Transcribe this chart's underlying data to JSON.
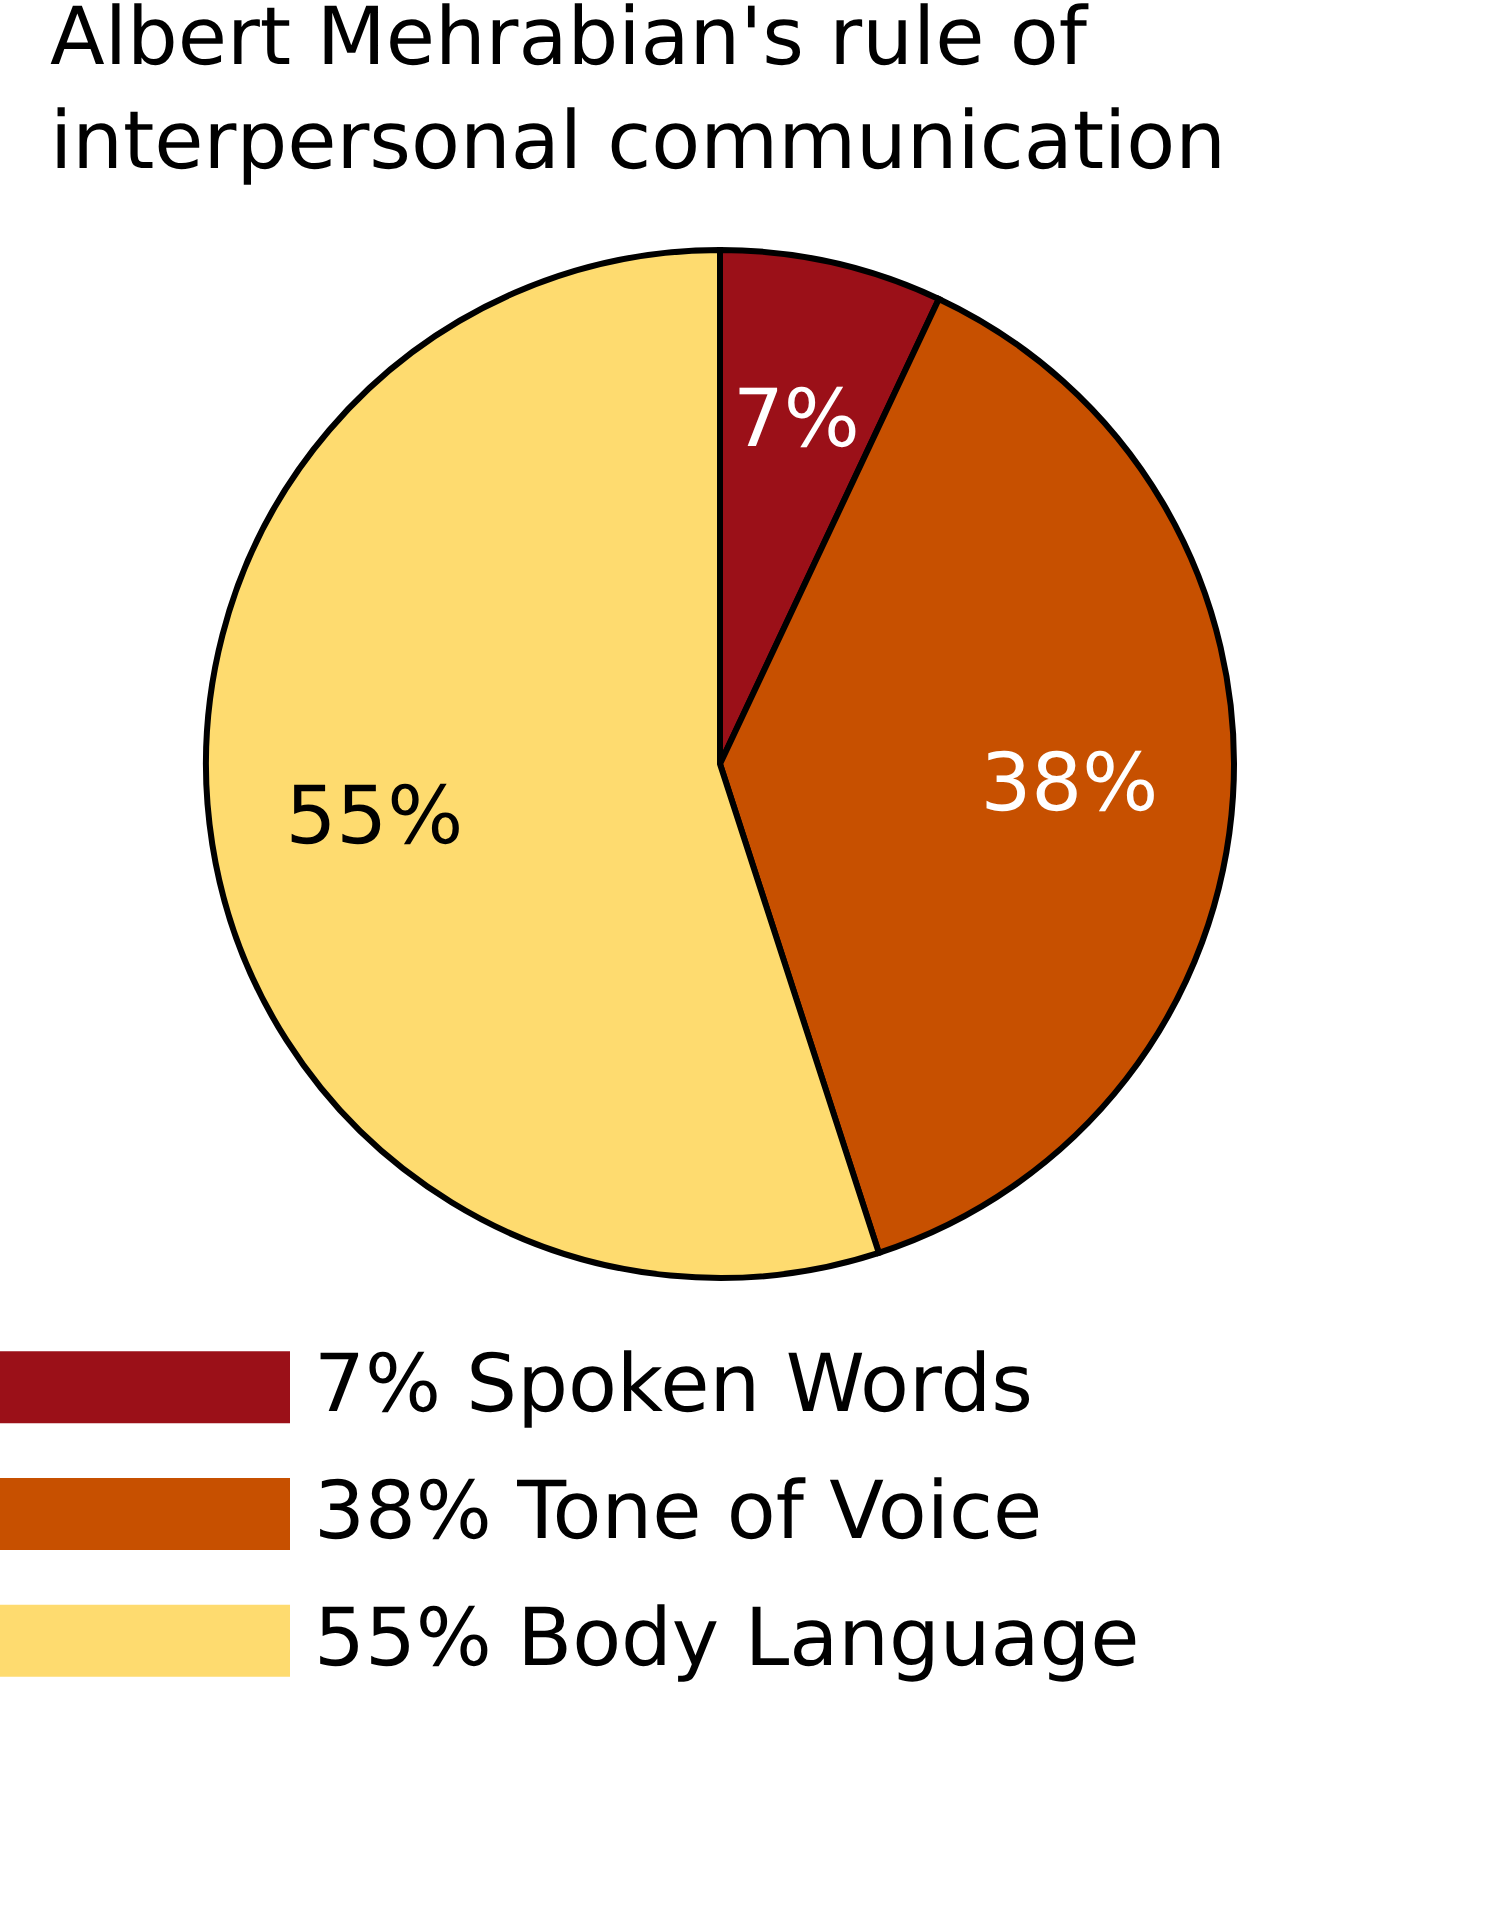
{
  "chart_data": {
    "type": "pie",
    "title": "Albert Mehrabian's rule of interpersonal communication",
    "categories": [
      "Spoken Words",
      "Tone of Voice",
      "Body Language"
    ],
    "values": [
      7,
      38,
      55
    ],
    "colors": [
      "#9b1018",
      "#c75000",
      "#fedb6f"
    ],
    "value_labels": [
      "7%",
      "38%",
      "55%"
    ],
    "legend": "bottom"
  }
}
